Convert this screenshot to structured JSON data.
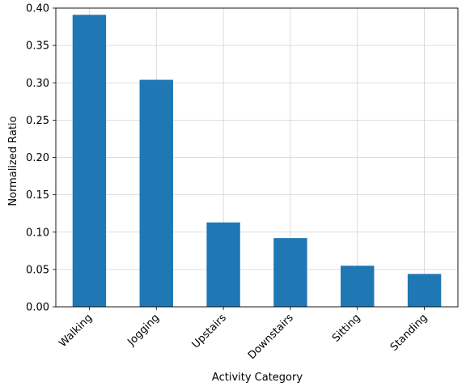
{
  "chart_data": {
    "type": "bar",
    "title": "",
    "xlabel": "Activity Category",
    "ylabel": "Normalized Ratio",
    "categories": [
      "Walking",
      "Jogging",
      "Upstairs",
      "Downstairs",
      "Sitting",
      "Standing"
    ],
    "values": [
      0.391,
      0.304,
      0.113,
      0.092,
      0.055,
      0.044
    ],
    "ylim": [
      0.0,
      0.4
    ],
    "yticks": [
      0.0,
      0.05,
      0.1,
      0.15,
      0.2,
      0.25,
      0.3,
      0.35,
      0.4
    ],
    "ytick_labels": [
      "0.00",
      "0.05",
      "0.10",
      "0.15",
      "0.20",
      "0.25",
      "0.30",
      "0.35",
      "0.40"
    ],
    "grid": true,
    "bar_color": "#1f77b4",
    "grid_color": "#d3d3d3",
    "xtick_rotation_deg": 45
  }
}
